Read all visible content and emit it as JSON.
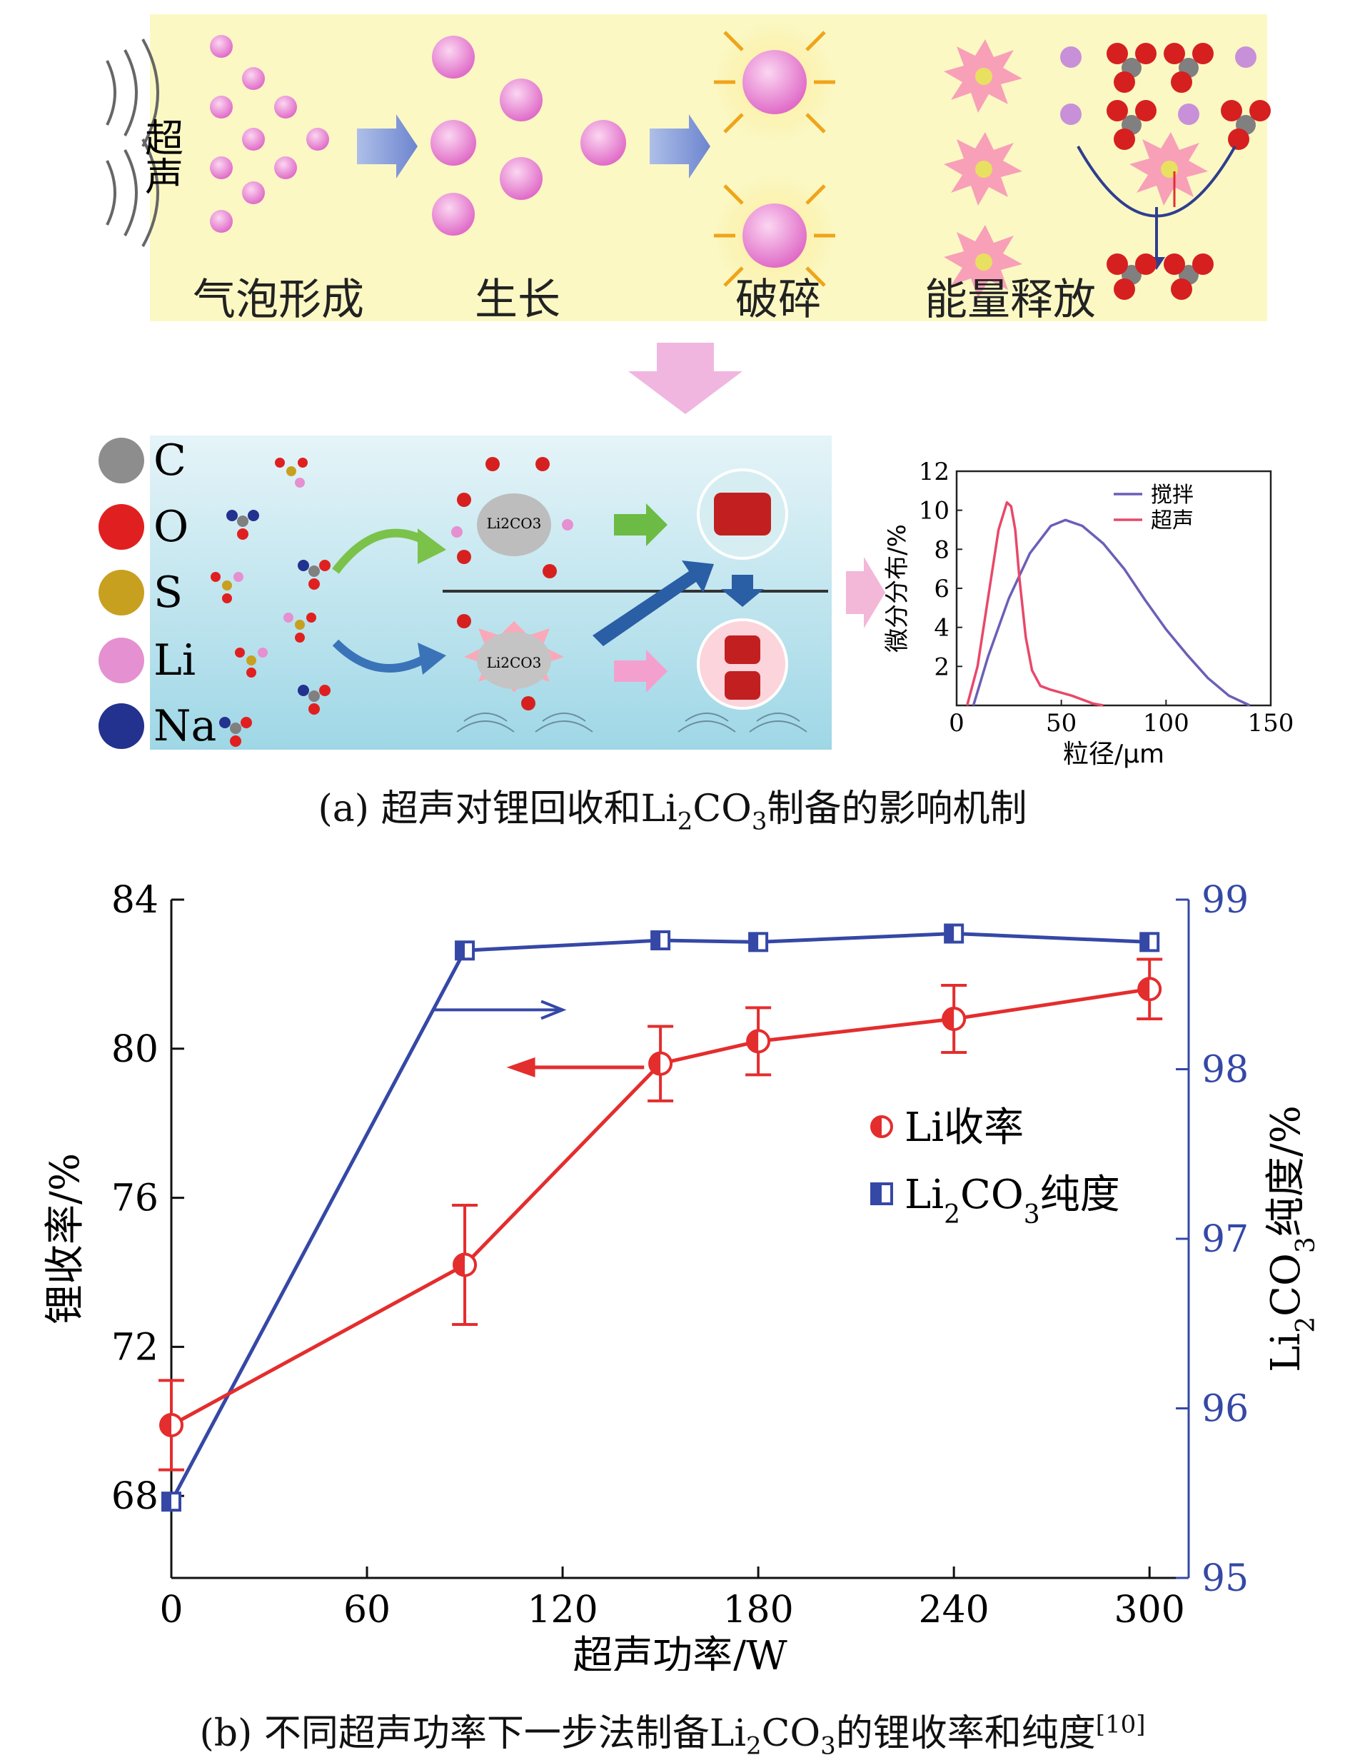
{
  "panel_a": {
    "stages": [
      "气泡形成",
      "生长",
      "破碎",
      "能量释放"
    ],
    "ultrasound_label": "超声",
    "legend_atoms": [
      {
        "symbol": "C",
        "color": "#8d8d8d"
      },
      {
        "symbol": "O",
        "color": "#e02020"
      },
      {
        "symbol": "S",
        "color": "#c8a020"
      },
      {
        "symbol": "Li",
        "color": "#e590d0"
      },
      {
        "symbol": "Na",
        "color": "#23318f"
      }
    ],
    "particle_label": "Li2CO3",
    "caption": {
      "prefix": "(a) 超声对锂回收和Li",
      "sub": "2",
      "mid": "CO",
      "sub2": "3",
      "suffix": "制备的影响机制"
    }
  },
  "panel_b": {
    "caption": {
      "prefix": "(b) 不同超声功率下一步法制备Li",
      "sub": "2",
      "mid": "CO",
      "sub2": "3",
      "suffix": "的锂收率和纯度",
      "sup": "[10]"
    }
  },
  "chart_data": [
    {
      "type": "line",
      "xlabel": "粒径/μm",
      "ylabel": "微分分布/%",
      "xlim": [
        0,
        150
      ],
      "ylim": [
        0,
        12
      ],
      "xticks": [
        "0",
        "50",
        "100",
        "150"
      ],
      "yticks": [
        "2",
        "4",
        "6",
        "8",
        "10",
        "12"
      ],
      "legend_position": "top-right",
      "series": [
        {
          "name": "搅拌",
          "color": "#6a5fb8",
          "x": [
            8,
            15,
            25,
            35,
            45,
            52,
            60,
            70,
            80,
            90,
            100,
            110,
            120,
            130,
            140
          ],
          "y": [
            0,
            2.5,
            5.5,
            7.8,
            9.2,
            9.5,
            9.2,
            8.3,
            7.0,
            5.4,
            3.9,
            2.6,
            1.4,
            0.5,
            0
          ]
        },
        {
          "name": "超声",
          "color": "#e8486a",
          "x": [
            5,
            10,
            15,
            20,
            24,
            26,
            28,
            30,
            33,
            36,
            40,
            45,
            55,
            65,
            70
          ],
          "y": [
            0,
            2.0,
            5.5,
            9.0,
            10.4,
            10.2,
            9.0,
            6.5,
            3.5,
            1.8,
            1.0,
            0.8,
            0.5,
            0.1,
            0
          ]
        }
      ]
    },
    {
      "type": "line",
      "xlabel": "超声功率/W",
      "ylabel": "锂收率/%",
      "ylabel_right": {
        "prefix": "Li",
        "sub": "2",
        "mid": "CO",
        "sub2": "3",
        "suffix": "纯度/%"
      },
      "xlim": [
        0,
        312
      ],
      "ylim": [
        65.8,
        84
      ],
      "ylim_right": [
        95,
        99
      ],
      "xticks": [
        0,
        60,
        120,
        180,
        240,
        300
      ],
      "yticks": [
        68,
        72,
        76,
        80,
        84
      ],
      "yticks_right": [
        95,
        96,
        97,
        98,
        99
      ],
      "legend_position": "right",
      "series": [
        {
          "name": "Li收率",
          "axis": "left",
          "color": "#e42d2d",
          "x": [
            0,
            90,
            150,
            180,
            240,
            300
          ],
          "y": [
            69.9,
            74.2,
            79.6,
            80.2,
            80.8,
            81.6
          ],
          "err": [
            1.2,
            1.6,
            1.0,
            0.9,
            0.9,
            0.8
          ]
        },
        {
          "name": "Li2CO3纯度",
          "legend": {
            "prefix": "Li",
            "sub": "2",
            "mid": "CO",
            "sub2": "3",
            "suffix": "纯度"
          },
          "axis": "right",
          "color": "#3548a6",
          "x": [
            0,
            90,
            150,
            180,
            240,
            300
          ],
          "y": [
            95.45,
            98.7,
            98.76,
            98.75,
            98.8,
            98.75
          ]
        }
      ]
    }
  ]
}
